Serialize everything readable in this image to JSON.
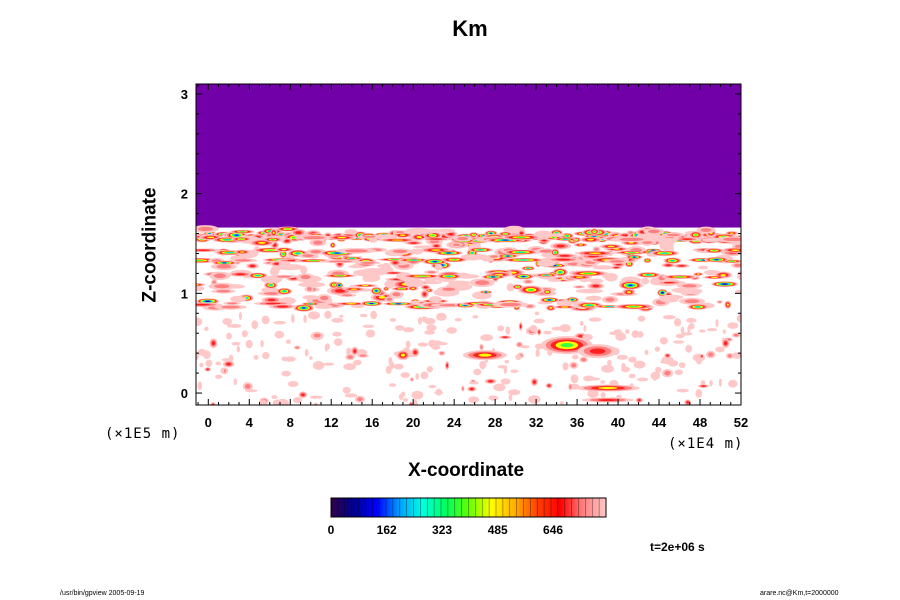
{
  "chart_data": {
    "type": "heatmap",
    "title": "Km",
    "xlabel": "X-coordinate",
    "ylabel": "Z-coordinate",
    "x_unit": "(×1E4 m)",
    "y_unit": "(×1E5 m)",
    "xlim": [
      -1.2,
      52
    ],
    "ylim": [
      -0.12,
      3.1
    ],
    "x_ticks": [
      "0",
      "4",
      "8",
      "12",
      "16",
      "20",
      "24",
      "28",
      "32",
      "36",
      "40",
      "44",
      "48",
      "52"
    ],
    "x_tick_values": [
      0,
      4,
      8,
      12,
      16,
      20,
      24,
      28,
      32,
      36,
      40,
      44,
      48,
      52
    ],
    "y_ticks": [
      "0",
      "1",
      "2",
      "3"
    ],
    "y_tick_values": [
      0,
      1,
      2,
      3
    ],
    "colorbar": {
      "min": 0,
      "max": 800,
      "tick_labels": [
        "0",
        "162",
        "323",
        "485",
        "646"
      ],
      "tick_values": [
        0,
        162,
        323,
        485,
        646
      ],
      "stops": [
        "#300048",
        "#000090",
        "#0000ff",
        "#00a0ff",
        "#00ffe0",
        "#00ff60",
        "#60ff00",
        "#ffff00",
        "#ffb000",
        "#ff4000",
        "#ff0000",
        "#ff8080",
        "#ffc8c8"
      ]
    },
    "regions": {
      "upper_uniform_value": 0,
      "upper_uniform_range": [
        1.65,
        3.1
      ],
      "upper_color": "#7200a8",
      "turbulent_layer_range": [
        0.8,
        1.72
      ],
      "lower_sparse_range": [
        -0.12,
        0.8
      ],
      "background_color": "#ffffff"
    },
    "time_label": "t=2e+06 s",
    "grid": false
  },
  "footer": {
    "left": "/usr/bin/gpview 2005-09-19",
    "right": "arare.nc@Km,t=2000000"
  }
}
